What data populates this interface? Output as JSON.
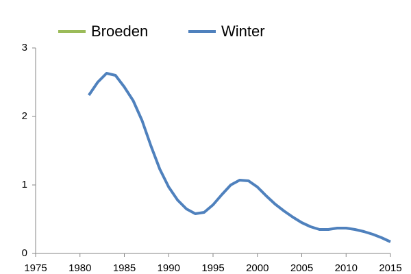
{
  "chart_data": {
    "type": "line",
    "x": [
      1981,
      1982,
      1983,
      1984,
      1985,
      1986,
      1987,
      1988,
      1989,
      1990,
      1991,
      1992,
      1993,
      1994,
      1995,
      1996,
      1997,
      1998,
      1999,
      2000,
      2001,
      2002,
      2003,
      2004,
      2005,
      2006,
      2007,
      2008,
      2009,
      2010,
      2011,
      2012,
      2013,
      2014,
      2015
    ],
    "series": [
      {
        "name": "Broeden",
        "color": "#9bbb59",
        "values": [
          null,
          null,
          null,
          null,
          null,
          null,
          null,
          null,
          null,
          null,
          null,
          null,
          null,
          null,
          null,
          null,
          null,
          null,
          null,
          null,
          null,
          null,
          null,
          null,
          null,
          null,
          null,
          null,
          null,
          null,
          null,
          null,
          null,
          null,
          null
        ]
      },
      {
        "name": "Winter",
        "color": "#4f81bd",
        "values": [
          2.31,
          2.5,
          2.63,
          2.6,
          2.43,
          2.23,
          1.94,
          1.57,
          1.23,
          0.97,
          0.78,
          0.65,
          0.58,
          0.6,
          0.71,
          0.86,
          1.0,
          1.07,
          1.06,
          0.97,
          0.84,
          0.72,
          0.62,
          0.53,
          0.45,
          0.39,
          0.35,
          0.35,
          0.37,
          0.37,
          0.35,
          0.32,
          0.28,
          0.23,
          0.17
        ]
      }
    ],
    "xlim": [
      1975,
      2015
    ],
    "xticks": [
      1975,
      1980,
      1985,
      1990,
      1995,
      2000,
      2005,
      2010,
      2015
    ],
    "ylim": [
      0,
      3
    ],
    "yticks": [
      0,
      1,
      2,
      3
    ],
    "grid": false,
    "legend": "top"
  }
}
